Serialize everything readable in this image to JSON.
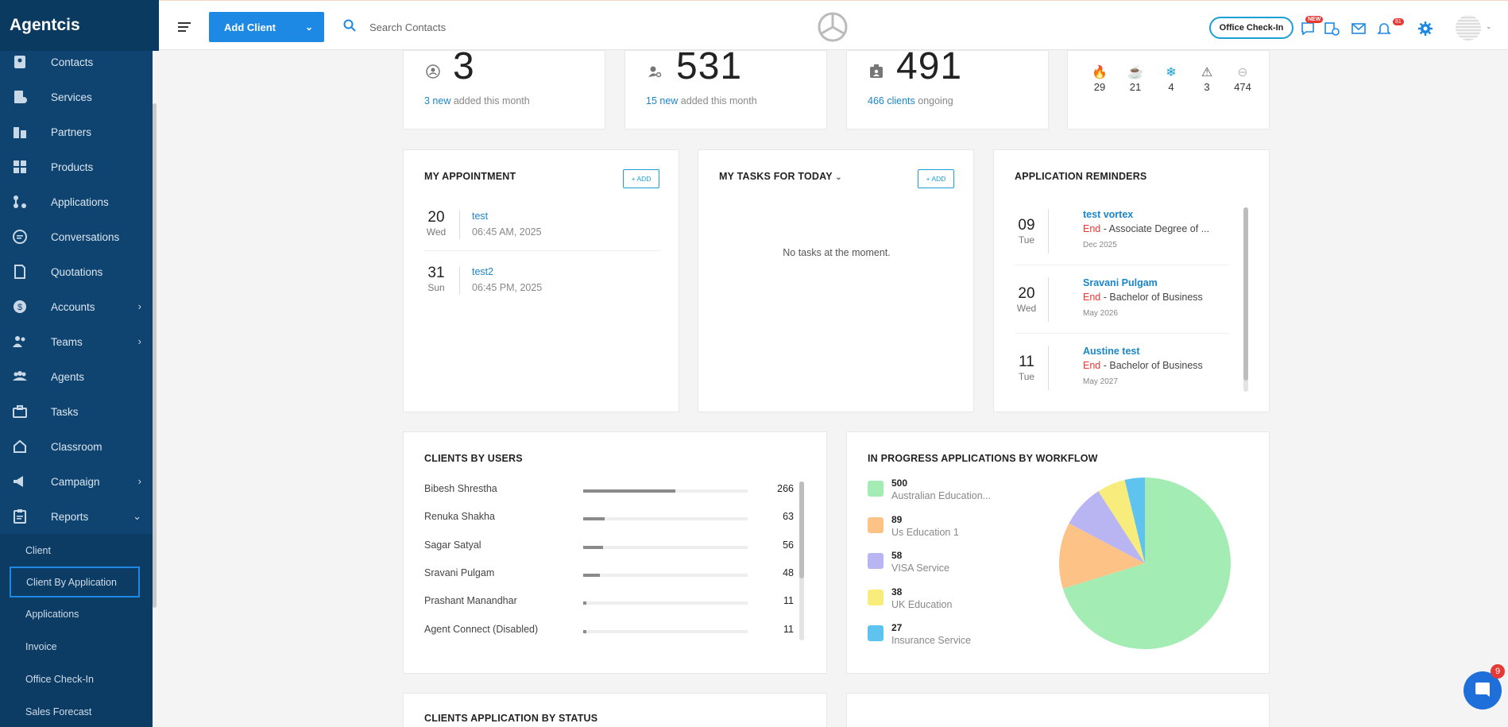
{
  "app": {
    "brand": "Agentcis"
  },
  "sidebar": {
    "items": [
      {
        "label": "Contacts",
        "icon": "contacts-icon",
        "chevron": ""
      },
      {
        "label": "Services",
        "icon": "services-icon",
        "chevron": ""
      },
      {
        "label": "Partners",
        "icon": "partners-icon",
        "chevron": ""
      },
      {
        "label": "Products",
        "icon": "products-icon",
        "chevron": ""
      },
      {
        "label": "Applications",
        "icon": "applications-icon",
        "chevron": ""
      },
      {
        "label": "Conversations",
        "icon": "conversations-icon",
        "chevron": ""
      },
      {
        "label": "Quotations",
        "icon": "quotations-icon",
        "chevron": ""
      },
      {
        "label": "Accounts",
        "icon": "accounts-icon",
        "chevron": "›"
      },
      {
        "label": "Teams",
        "icon": "teams-icon",
        "chevron": "›"
      },
      {
        "label": "Agents",
        "icon": "agents-icon",
        "chevron": ""
      },
      {
        "label": "Tasks",
        "icon": "tasks-icon",
        "chevron": ""
      },
      {
        "label": "Classroom",
        "icon": "classroom-icon",
        "chevron": ""
      },
      {
        "label": "Campaign",
        "icon": "campaign-icon",
        "chevron": "›"
      },
      {
        "label": "Reports",
        "icon": "reports-icon",
        "chevron": "⌄"
      }
    ],
    "reports_sub": [
      "Client",
      "Client By Application",
      "Applications",
      "Invoice",
      "Office Check-In",
      "Sales Forecast"
    ]
  },
  "topbar": {
    "add_client_label": "Add Client",
    "search_placeholder": "Search Contacts",
    "office_checkin_label": "Office Check-In",
    "new_badge": "NEW",
    "notif_badge": "81"
  },
  "stats": [
    {
      "value": "3",
      "link": "3 new",
      "rest": " added this month"
    },
    {
      "value": "531",
      "link": "15 new",
      "rest": " added this month"
    },
    {
      "value": "491",
      "link": "466 clients",
      "rest": " ongoing"
    }
  ],
  "leads": [
    {
      "icon": "fire-icon",
      "value": "29",
      "color": "#e53935"
    },
    {
      "icon": "coffee-icon",
      "value": "21",
      "color": "#f5a623"
    },
    {
      "icon": "snowflake-icon",
      "value": "4",
      "color": "#1aa0d6"
    },
    {
      "icon": "warning-icon",
      "value": "3",
      "color": "#555555"
    },
    {
      "icon": "minus-circle-icon",
      "value": "474",
      "color": "#bbbbbb"
    }
  ],
  "appointments": {
    "title": "MY APPOINTMENT",
    "add_label": "+ ADD",
    "items": [
      {
        "day": "20",
        "weekday": "Wed",
        "title": "test",
        "time": "06:45 AM, 2025"
      },
      {
        "day": "31",
        "weekday": "Sun",
        "title": "test2",
        "time": "06:45 PM, 2025"
      }
    ]
  },
  "tasks": {
    "title": "MY TASKS FOR  TODAY",
    "add_label": "+ ADD",
    "empty": "No tasks at the moment."
  },
  "reminders": {
    "title": "APPLICATION REMINDERS",
    "items": [
      {
        "day": "09",
        "weekday": "Tue",
        "name": "test vortex",
        "end": "End",
        "course": " - Associate Degree of ...",
        "month": "Dec 2025"
      },
      {
        "day": "20",
        "weekday": "Wed",
        "name": "Sravani Pulgam",
        "end": "End",
        "course": " - Bachelor of Business",
        "month": "May 2026"
      },
      {
        "day": "11",
        "weekday": "Tue",
        "name": "Austine test",
        "end": "End",
        "course": " - Bachelor of Business",
        "month": "May 2027"
      }
    ]
  },
  "clients_by_users": {
    "title": "CLIENTS BY USERS",
    "rows": [
      {
        "name": "Bibesh Shrestha",
        "value": "266",
        "fraction": 0.56
      },
      {
        "name": "Renuka Shakha",
        "value": "63",
        "fraction": 0.13
      },
      {
        "name": "Sagar Satyal",
        "value": "56",
        "fraction": 0.12
      },
      {
        "name": "Sravani Pulgam",
        "value": "48",
        "fraction": 0.1
      },
      {
        "name": "Prashant Manandhar",
        "value": "11",
        "fraction": 0.02
      },
      {
        "name": "Agent Connect (Disabled)",
        "value": "11",
        "fraction": 0.02
      }
    ]
  },
  "workflow": {
    "title": "IN PROGRESS APPLICATIONS BY WORKFLOW",
    "items": [
      {
        "value": "500",
        "label": "Australian Education...",
        "color": "#a3ecb3"
      },
      {
        "value": "89",
        "label": "Us Education 1",
        "color": "#fdc285"
      },
      {
        "value": "58",
        "label": "VISA Service",
        "color": "#b9b4f2"
      },
      {
        "value": "38",
        "label": "UK Education",
        "color": "#f8ec7c"
      },
      {
        "value": "27",
        "label": "Insurance Service",
        "color": "#5ec4ef"
      }
    ]
  },
  "chart_data": {
    "type": "pie",
    "categories": [
      "Australian Education...",
      "Us Education 1",
      "VISA Service",
      "UK Education",
      "Insurance Service"
    ],
    "values": [
      500,
      89,
      58,
      38,
      27
    ],
    "colors": [
      "#a3ecb3",
      "#fdc285",
      "#b9b4f2",
      "#f8ec7c",
      "#5ec4ef"
    ],
    "title": "IN PROGRESS APPLICATIONS BY WORKFLOW",
    "legend": "left"
  },
  "bottom": {
    "status_title": "CLIENTS APPLICATION BY STATUS"
  },
  "chat": {
    "badge": "9"
  }
}
